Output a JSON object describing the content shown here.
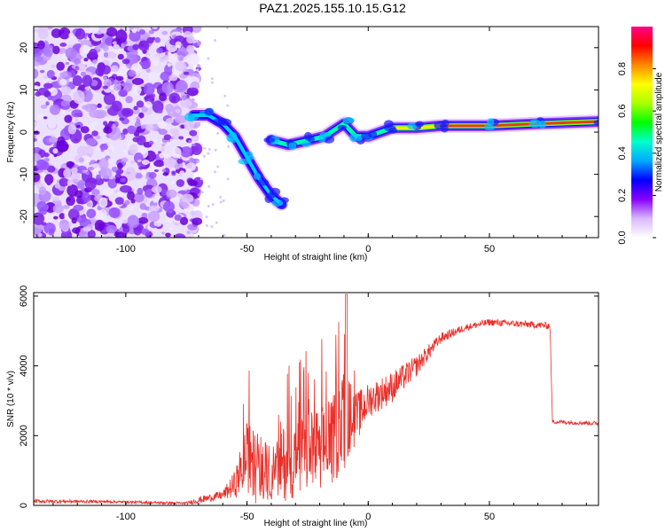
{
  "title": "PAZ1.2025.155.10.15.G12",
  "chart_data": [
    {
      "type": "heatmap",
      "name": "spectrogram",
      "xlabel": "Height of straight line (km)",
      "ylabel": "Frequency (Hz)",
      "xlim": [
        -138,
        95
      ],
      "ylim": [
        -25,
        25
      ],
      "x_ticks": [
        -100,
        -50,
        0,
        50
      ],
      "x_tick_labels": [
        "-100",
        "-50",
        "0",
        "50"
      ],
      "y_ticks": [
        20,
        10,
        0,
        -10,
        -20
      ],
      "y_tick_labels": [
        "20",
        "10",
        "0",
        "-10",
        "-20"
      ],
      "colorbar": {
        "label": "Normalized spectral amplitude",
        "range": [
          0,
          1
        ],
        "ticks": [
          0.0,
          0.2,
          0.4,
          0.6,
          0.8
        ],
        "tick_labels": [
          "0.0",
          "0.2",
          "0.4",
          "0.6",
          "0.8"
        ],
        "colors": [
          "#ffffff",
          "#d9b8ff",
          "#8800ff",
          "#0000ff",
          "#00aaff",
          "#00ffcc",
          "#00ff00",
          "#aaff00",
          "#ffff00",
          "#ff8800",
          "#ff0000",
          "#ff0088"
        ]
      },
      "features": {
        "noise_region_x": [
          -138,
          -72
        ],
        "main_track": [
          {
            "x": -72,
            "y": 4
          },
          {
            "x": -66,
            "y": 4
          },
          {
            "x": -60,
            "y": 2
          },
          {
            "x": -55,
            "y": -1
          },
          {
            "x": -50,
            "y": -6
          },
          {
            "x": -45,
            "y": -11
          },
          {
            "x": -40,
            "y": -15
          },
          {
            "x": -36,
            "y": -17
          }
        ],
        "branch_track": [
          {
            "x": -40,
            "y": -2
          },
          {
            "x": -33,
            "y": -3
          },
          {
            "x": -25,
            "y": -2
          },
          {
            "x": -18,
            "y": -1
          },
          {
            "x": -10,
            "y": 2
          },
          {
            "x": -5,
            "y": -1
          },
          {
            "x": 0,
            "y": -1
          },
          {
            "x": 10,
            "y": 1
          },
          {
            "x": 20,
            "y": 1
          },
          {
            "x": 30,
            "y": 1.5
          },
          {
            "x": 50,
            "y": 1.5
          },
          {
            "x": 70,
            "y": 2
          },
          {
            "x": 95,
            "y": 2.5
          }
        ]
      }
    },
    {
      "type": "line",
      "name": "snr",
      "xlabel": "Height of straight line (km)",
      "ylabel": "SNR (10 * v/v)",
      "xlim": [
        -138,
        95
      ],
      "ylim": [
        0,
        6100
      ],
      "x_ticks": [
        -100,
        -50,
        0,
        50
      ],
      "x_tick_labels": [
        "-100",
        "-50",
        "0",
        "50"
      ],
      "y_ticks": [
        0,
        2000,
        4000,
        6000
      ],
      "y_tick_labels": [
        "0",
        "2000",
        "4000",
        "6000"
      ],
      "series_color": "#e8302a",
      "envelope": [
        {
          "x": -138,
          "base": 120,
          "amp": 120
        },
        {
          "x": -110,
          "base": 110,
          "amp": 80
        },
        {
          "x": -75,
          "base": 60,
          "amp": 80
        },
        {
          "x": -70,
          "base": 150,
          "amp": 200
        },
        {
          "x": -60,
          "base": 300,
          "amp": 250
        },
        {
          "x": -55,
          "base": 600,
          "amp": 800
        },
        {
          "x": -50,
          "base": 1400,
          "amp": 2000
        },
        {
          "x": -45,
          "base": 1000,
          "amp": 2200
        },
        {
          "x": -40,
          "base": 900,
          "amp": 1500
        },
        {
          "x": -35,
          "base": 1200,
          "amp": 2200
        },
        {
          "x": -25,
          "base": 1500,
          "amp": 2300
        },
        {
          "x": -15,
          "base": 1800,
          "amp": 2500
        },
        {
          "x": -10,
          "base": 2500,
          "amp": 3000
        },
        {
          "x": -5,
          "base": 2500,
          "amp": 1500
        },
        {
          "x": 0,
          "base": 3000,
          "amp": 1000
        },
        {
          "x": 10,
          "base": 3400,
          "amp": 900
        },
        {
          "x": 20,
          "base": 4000,
          "amp": 600
        },
        {
          "x": 30,
          "base": 4800,
          "amp": 300
        },
        {
          "x": 40,
          "base": 5100,
          "amp": 200
        },
        {
          "x": 50,
          "base": 5250,
          "amp": 200
        },
        {
          "x": 75,
          "base": 5150,
          "amp": 200
        },
        {
          "x": 76,
          "base": 2400,
          "amp": 120
        },
        {
          "x": 95,
          "base": 2350,
          "amp": 120
        }
      ]
    }
  ]
}
